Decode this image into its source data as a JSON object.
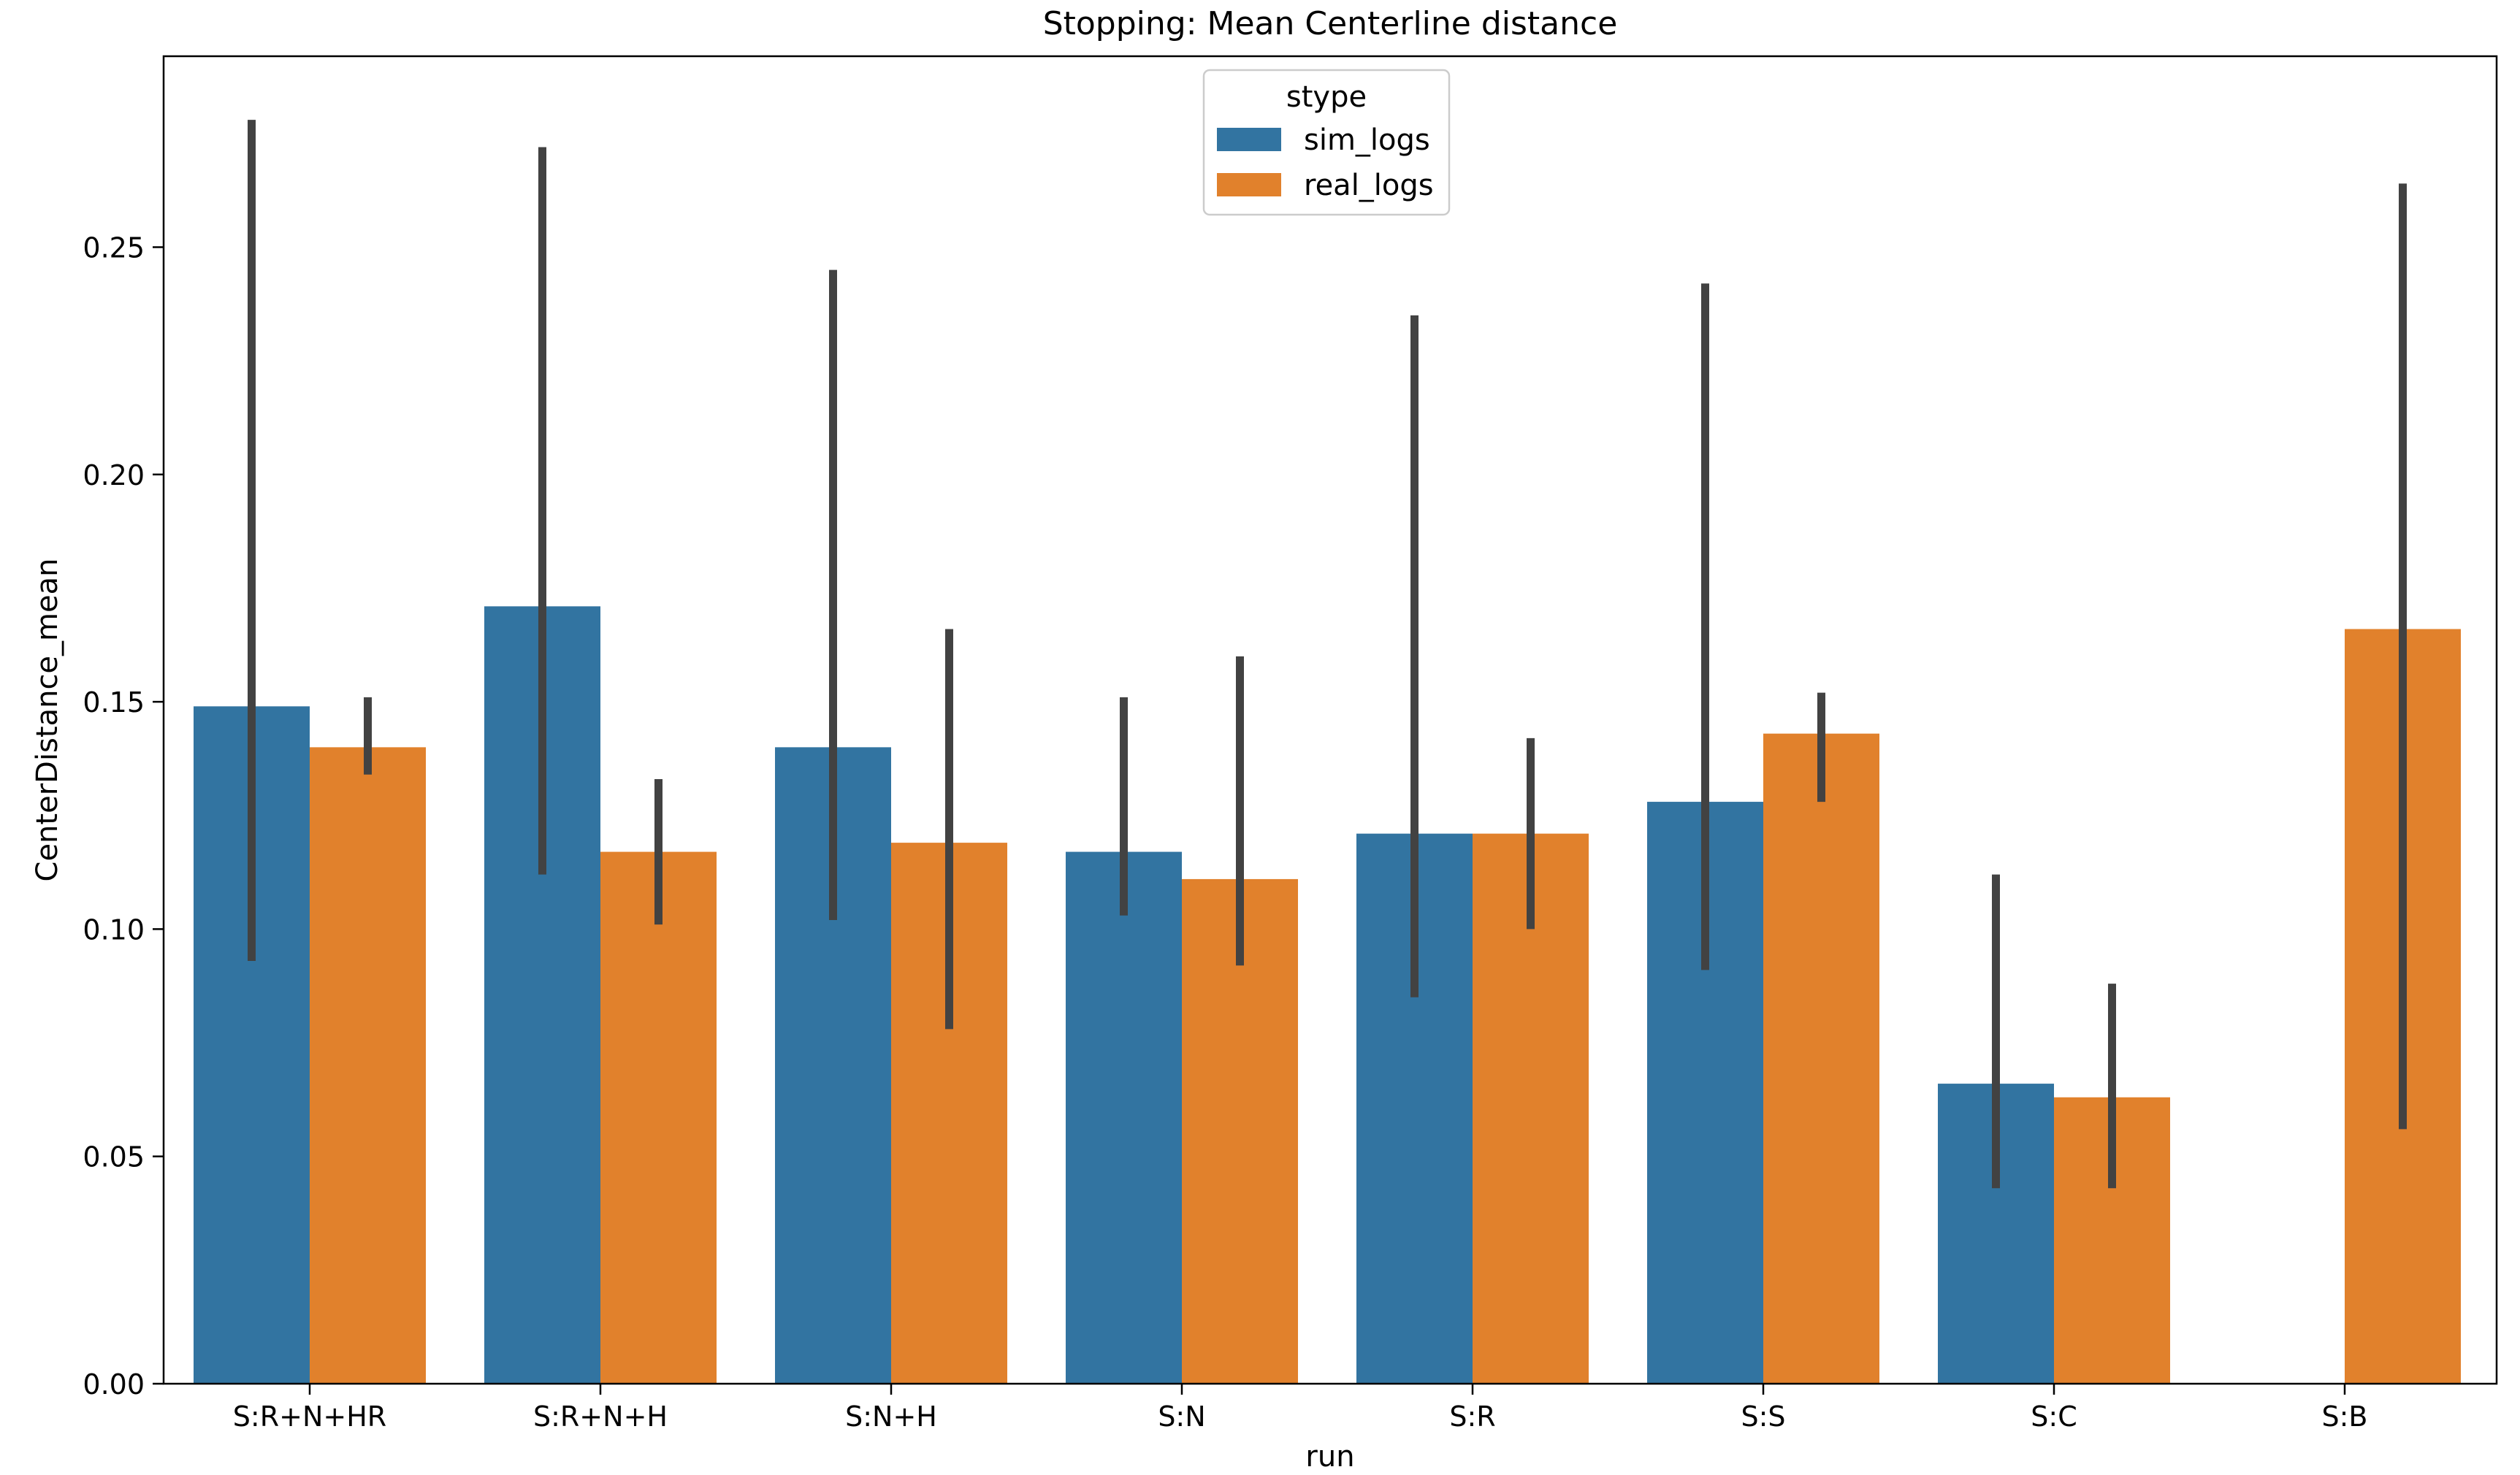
{
  "chart_data": {
    "type": "bar",
    "title": "Stopping: Mean Centerline distance",
    "xlabel": "run",
    "ylabel": "CenterDistance_mean",
    "categories": [
      "S:R+N+HR",
      "S:R+N+H",
      "S:N+H",
      "S:N",
      "S:R",
      "S:S",
      "S:C",
      "S:B"
    ],
    "ylim": [
      0,
      0.292
    ],
    "yticks": [
      "0.00",
      "0.05",
      "0.10",
      "0.15",
      "0.20",
      "0.25"
    ],
    "legend": {
      "title": "stype",
      "placement": "top-center"
    },
    "series": [
      {
        "name": "sim_logs",
        "color": "#3274a1",
        "values": [
          0.149,
          0.171,
          0.14,
          0.117,
          0.121,
          0.128,
          0.066,
          null
        ],
        "ci_low": [
          0.093,
          0.112,
          0.102,
          0.103,
          0.085,
          0.091,
          0.043,
          null
        ],
        "ci_high": [
          0.278,
          0.272,
          0.245,
          0.151,
          0.235,
          0.242,
          0.112,
          null
        ]
      },
      {
        "name": "real_logs",
        "color": "#e1812c",
        "values": [
          0.14,
          0.117,
          0.119,
          0.111,
          0.121,
          0.143,
          0.063,
          0.166
        ],
        "ci_low": [
          0.134,
          0.101,
          0.078,
          0.092,
          0.1,
          0.128,
          0.043,
          0.056
        ],
        "ci_high": [
          0.151,
          0.133,
          0.166,
          0.16,
          0.142,
          0.152,
          0.088,
          0.264
        ]
      }
    ],
    "errorbar_color": "#424242"
  }
}
